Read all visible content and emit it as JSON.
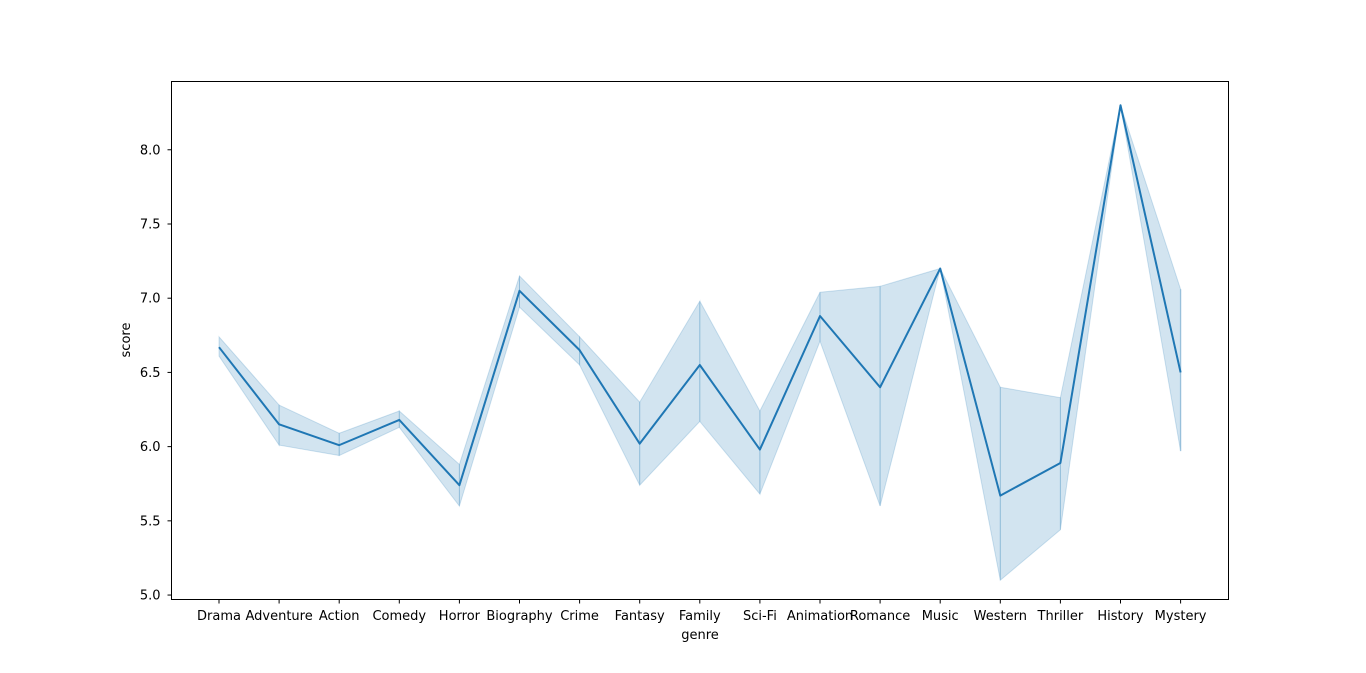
{
  "chart_data": {
    "type": "line",
    "title": "",
    "xlabel": "genre",
    "ylabel": "score",
    "categories": [
      "Drama",
      "Adventure",
      "Action",
      "Comedy",
      "Horror",
      "Biography",
      "Crime",
      "Fantasy",
      "Family",
      "Sci-Fi",
      "Animation",
      "Romance",
      "Music",
      "Western",
      "Thriller",
      "History",
      "Mystery"
    ],
    "yticks": [
      "5.0",
      "5.5",
      "6.0",
      "6.5",
      "7.0",
      "7.5",
      "8.0"
    ],
    "ylim": [
      4.97,
      8.46
    ],
    "grid": false,
    "series": [
      {
        "values": [
          6.67,
          6.15,
          6.01,
          6.18,
          5.74,
          7.05,
          6.65,
          6.02,
          6.55,
          5.98,
          6.88,
          6.4,
          7.2,
          5.67,
          5.89,
          8.3,
          6.5
        ],
        "ci_lower": [
          6.61,
          6.01,
          5.94,
          6.13,
          5.6,
          6.94,
          6.55,
          5.74,
          6.17,
          5.68,
          6.71,
          5.6,
          7.2,
          5.1,
          5.44,
          8.3,
          5.97
        ],
        "ci_upper": [
          6.74,
          6.28,
          6.09,
          6.24,
          5.88,
          7.15,
          6.74,
          6.3,
          6.98,
          6.24,
          7.04,
          7.08,
          7.2,
          6.4,
          6.33,
          8.3,
          7.06
        ],
        "color": "#1f77b4"
      }
    ]
  }
}
